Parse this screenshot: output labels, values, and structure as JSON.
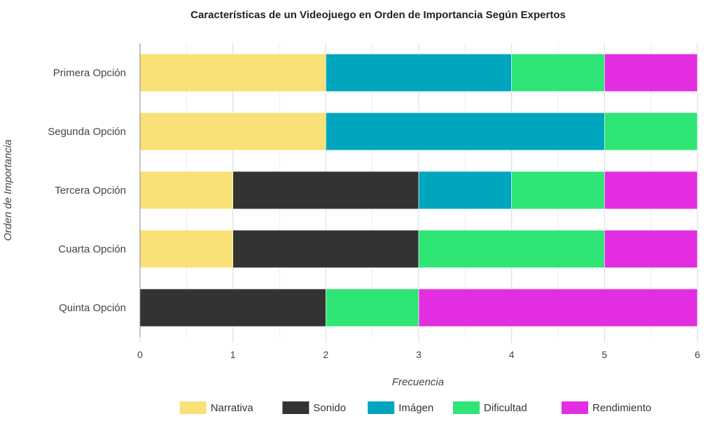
{
  "chart_data": {
    "type": "bar",
    "orientation": "horizontal",
    "stacked": true,
    "title": "Características de un Videojuego en Orden de Importancia Según Expertos",
    "xlabel": "Frecuencia",
    "ylabel": "Orden de Importancia",
    "xlim": [
      0,
      6
    ],
    "x_ticks": [
      "0",
      "1",
      "2",
      "3",
      "4",
      "5",
      "6"
    ],
    "grid": true,
    "legend_position": "bottom",
    "categories": [
      "Primera Opción",
      "Segunda Opción",
      "Tercera Opción",
      "Cuarta Opción",
      "Quinta Opción"
    ],
    "series": [
      {
        "name": "Narrativa",
        "color": "#f9e077",
        "values": [
          2,
          2,
          1,
          1,
          0
        ]
      },
      {
        "name": "Sonido",
        "color": "#333333",
        "values": [
          0,
          0,
          2,
          2,
          2
        ]
      },
      {
        "name": "Imágen",
        "color": "#00a6bd",
        "values": [
          2,
          3,
          1,
          0,
          0
        ]
      },
      {
        "name": "Dificultad",
        "color": "#2ee575",
        "values": [
          1,
          1,
          1,
          2,
          1
        ]
      },
      {
        "name": "Rendimiento",
        "color": "#e22ee0",
        "values": [
          1,
          0,
          1,
          1,
          3
        ]
      }
    ]
  }
}
